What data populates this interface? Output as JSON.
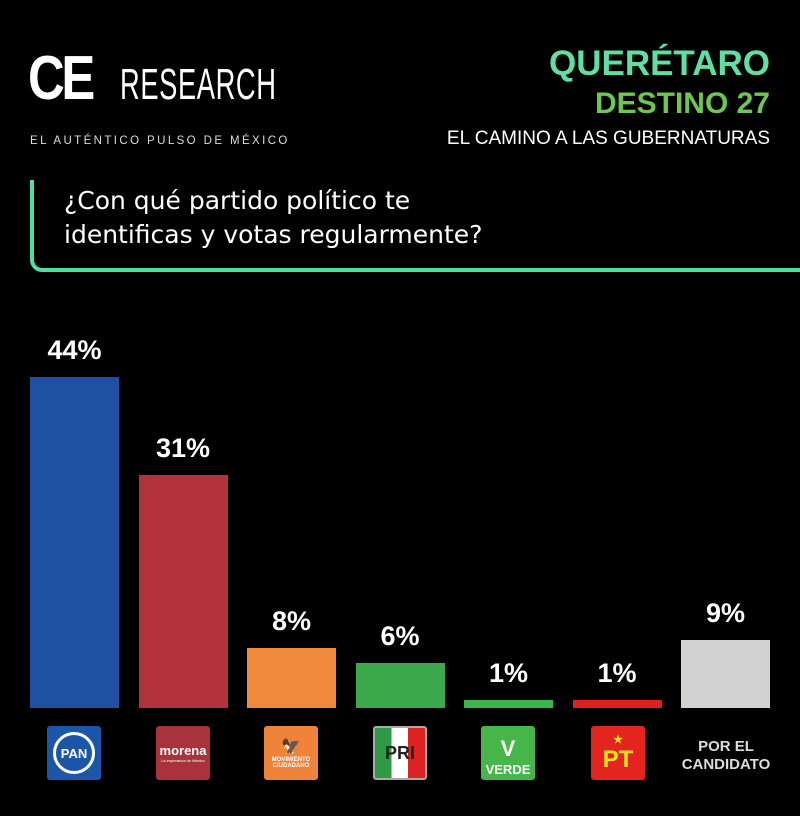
{
  "brand": {
    "logo_text": "CERESEARCH",
    "tagline": "EL AUTÉNTICO PULSO DE MÉXICO"
  },
  "header": {
    "title": "QUERÉTARO",
    "subtitle": "DESTINO 27",
    "caption": "EL CAMINO A LAS GUBERNATURAS"
  },
  "question_line1": "¿Con qué partido político te",
  "question_line2": "identificas y votas regularmente?",
  "chart_data": {
    "type": "bar",
    "title": "¿Con qué partido político te identificas y votas regularmente?",
    "categories": [
      "PAN",
      "morena",
      "MOVIMIENTO CIUDADANO",
      "PRI",
      "VERDE",
      "PT",
      "POR EL CANDIDATO"
    ],
    "values": [
      44,
      31,
      8,
      6,
      1,
      1,
      9
    ],
    "labels": [
      "44%",
      "31%",
      "8%",
      "6%",
      "1%",
      "1%",
      "9%"
    ],
    "colors": [
      "#1f50a2",
      "#b3333d",
      "#f08a3a",
      "#3aa84b",
      "#3bb54b",
      "#e0201f",
      "#d2d2d2"
    ],
    "ylim": [
      0,
      44
    ],
    "xlabel": "",
    "ylabel": ""
  },
  "icons": {
    "pan": "PAN",
    "morena": "morena",
    "morena_sub": "La esperanza de México",
    "mc1": "MOVIMIENTO",
    "mc2": "CIUDADANO",
    "pri": "PRI",
    "verde": "VERDE",
    "pt": "PT",
    "cand1": "POR EL",
    "cand2": "CANDIDATO"
  }
}
